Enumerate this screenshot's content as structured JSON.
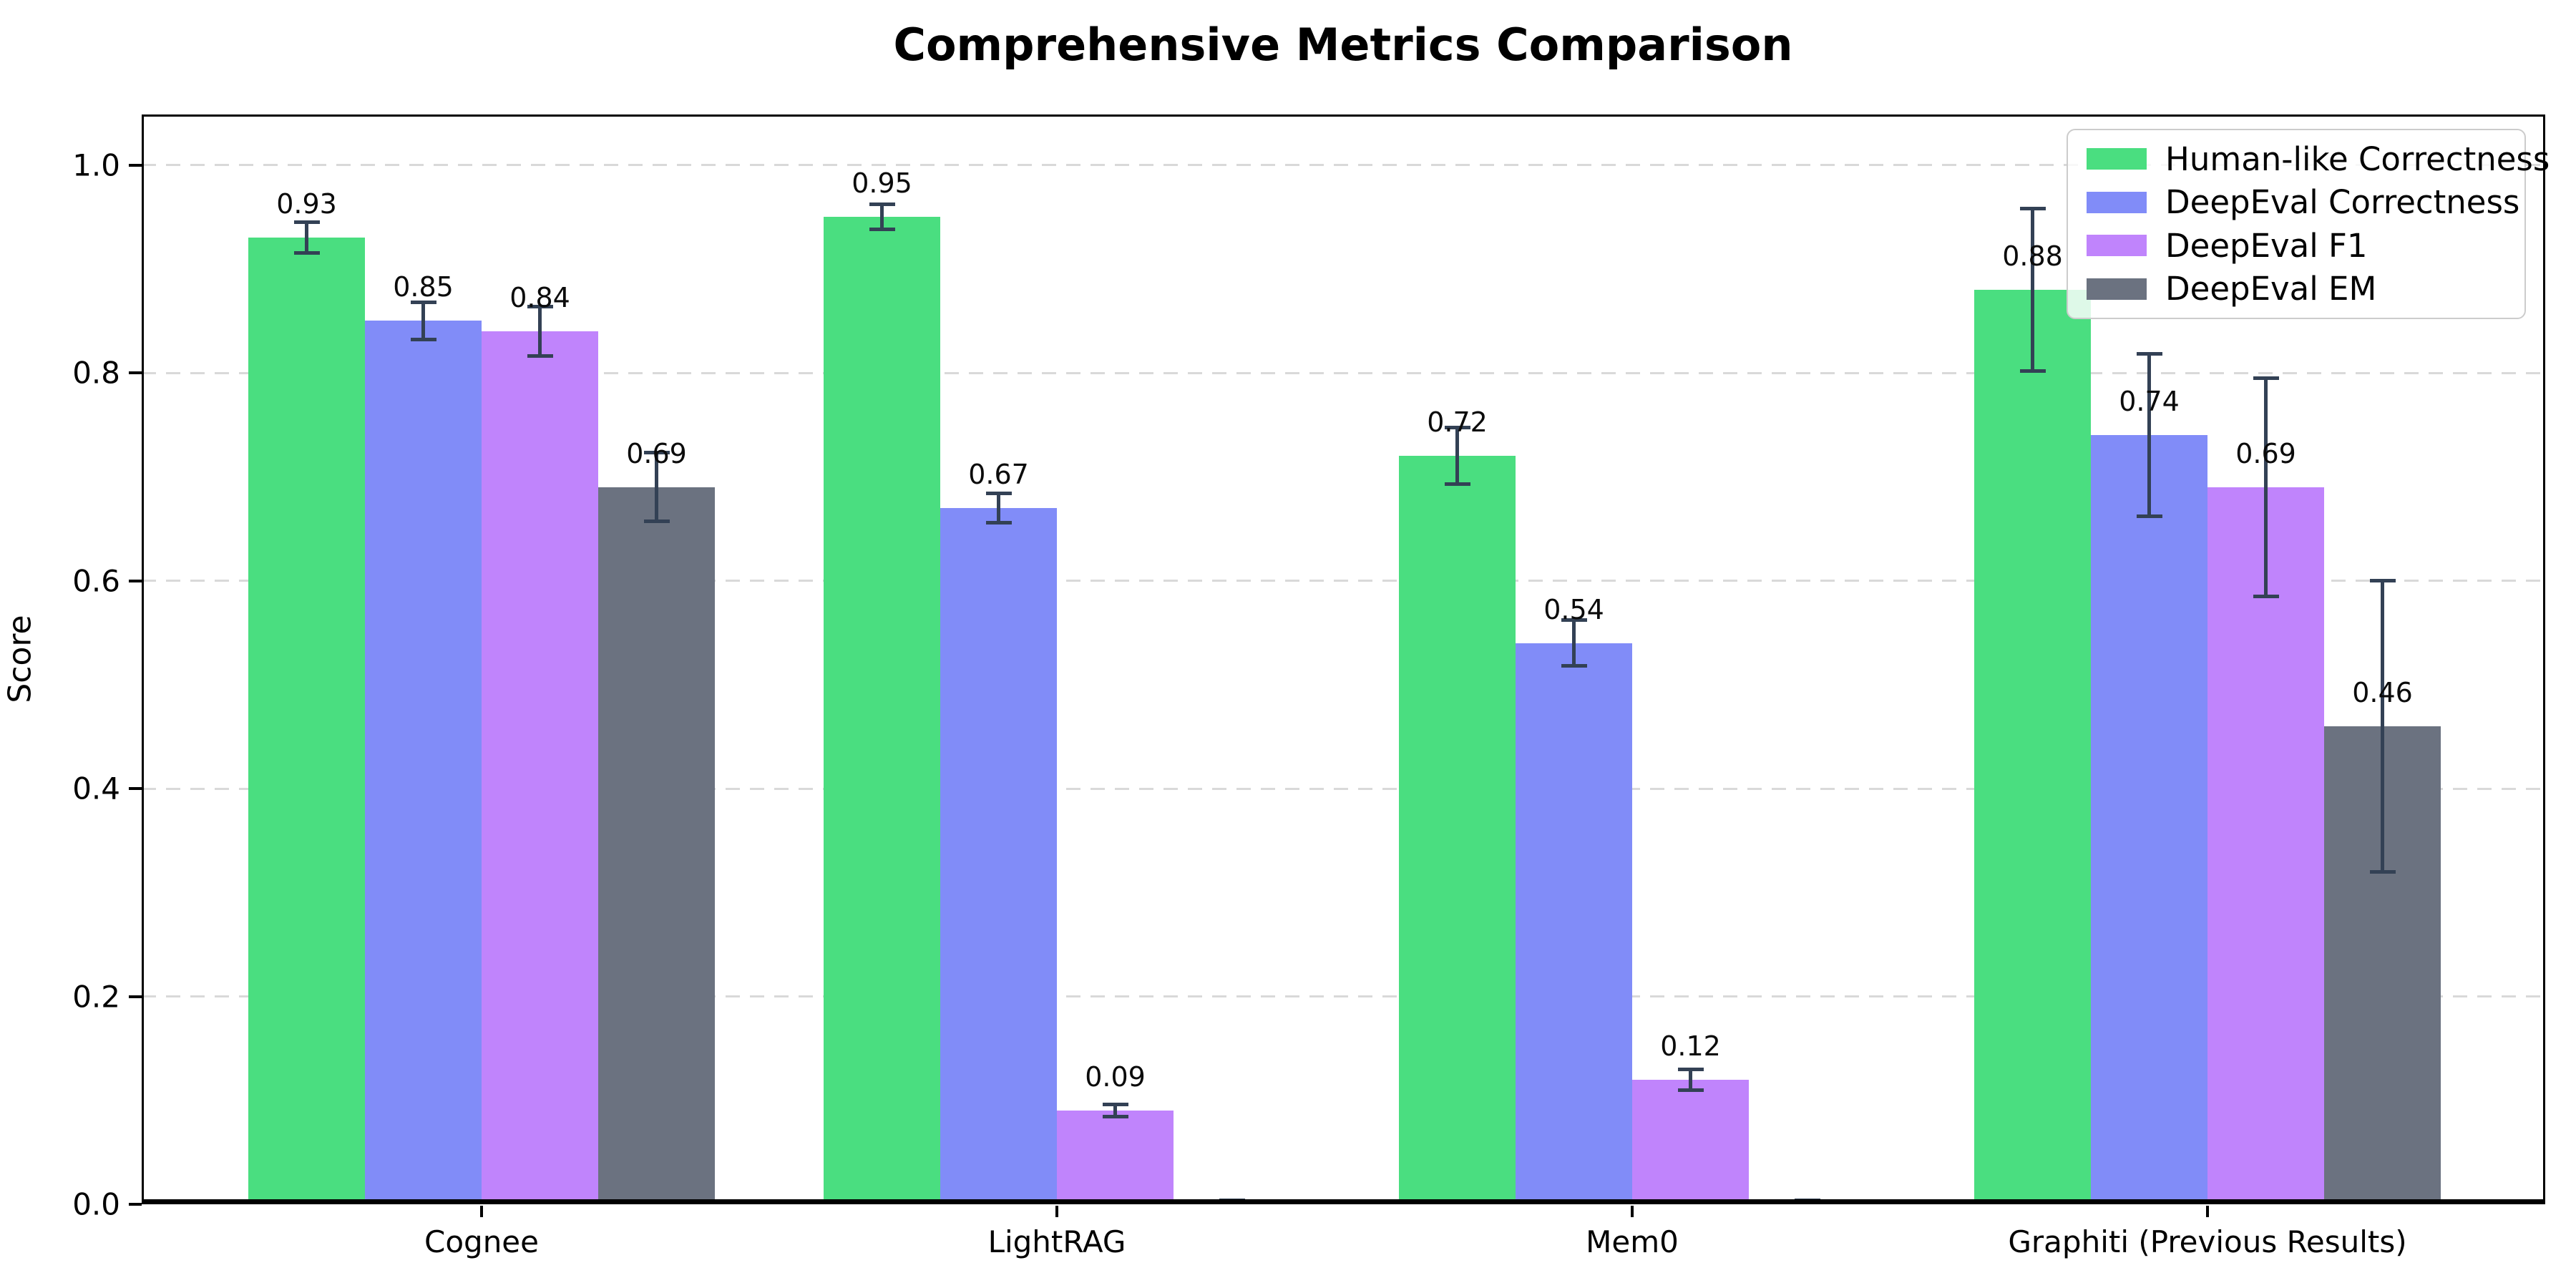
{
  "title": "Comprehensive Metrics Comparison",
  "y_axis": {
    "label": "Score",
    "ticks": [
      "0.0",
      "0.2",
      "0.4",
      "0.6",
      "0.8",
      "1.0"
    ]
  },
  "chart_data": {
    "type": "bar",
    "title": "Comprehensive Metrics Comparison",
    "xlabel": "",
    "ylabel": "Score",
    "categories": [
      "Cognee",
      "LightRAG",
      "Mem0",
      "Graphiti (Previous Results)"
    ],
    "series": [
      {
        "name": "Human-like Correctness",
        "color": "#4ade80",
        "values": [
          0.93,
          0.95,
          0.72,
          0.88
        ],
        "errors": [
          0.015,
          0.012,
          0.027,
          0.078
        ]
      },
      {
        "name": "DeepEval Correctness",
        "color": "#818cf8",
        "values": [
          0.85,
          0.67,
          0.54,
          0.74
        ],
        "errors": [
          0.018,
          0.014,
          0.022,
          0.078
        ]
      },
      {
        "name": "DeepEval F1",
        "color": "#c084fc",
        "values": [
          0.84,
          0.09,
          0.12,
          0.69
        ],
        "errors": [
          0.024,
          0.006,
          0.01,
          0.105
        ]
      },
      {
        "name": "DeepEval EM",
        "color": "#6b7280",
        "values": [
          0.69,
          0.0,
          0.0,
          0.46
        ],
        "errors": [
          0.033,
          0.004,
          0.004,
          0.14
        ]
      }
    ],
    "ylim": [
      0,
      1.05
    ],
    "yticks": [
      0.0,
      0.2,
      0.4,
      0.6,
      0.8,
      1.0
    ],
    "grid": {
      "axis": "y",
      "style": "dashed",
      "color": "#d9d9d9"
    },
    "legend_position": "upper right",
    "value_label_rule": "two decimals, shown only for bars greater than zero",
    "error_bar_color": "#334155"
  }
}
